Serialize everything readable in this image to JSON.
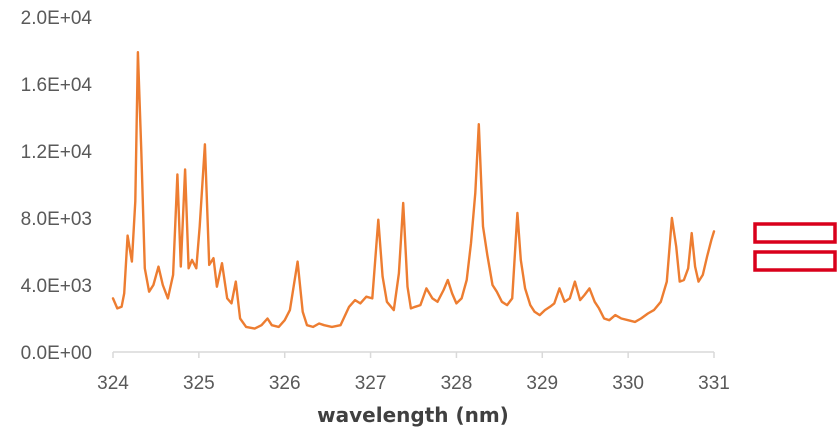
{
  "chart_data": {
    "type": "line",
    "title": "",
    "xlabel": "wavelength (nm)",
    "ylabel": "",
    "xlim": [
      324,
      331
    ],
    "ylim": [
      0,
      20000
    ],
    "x_ticks": [
      324,
      325,
      326,
      327,
      328,
      329,
      330,
      331
    ],
    "x_tick_labels": [
      "324",
      "325",
      "326",
      "327",
      "328",
      "329",
      "330",
      "331"
    ],
    "y_ticks": [
      0,
      4000,
      8000,
      12000,
      16000,
      20000
    ],
    "y_tick_labels": [
      "0.0E+00",
      "4.0E+03",
      "8.0E+03",
      "1.2E+04",
      "1.6E+04",
      "2.0E+04"
    ],
    "grid": false,
    "legend": "right (markers only, no text)",
    "series": [
      {
        "color": "#ED7D31",
        "points": [
          [
            324.0,
            3200
          ],
          [
            324.05,
            2600
          ],
          [
            324.1,
            2700
          ],
          [
            324.13,
            3500
          ],
          [
            324.17,
            6950
          ],
          [
            324.22,
            5400
          ],
          [
            324.26,
            9000
          ],
          [
            324.29,
            17900
          ],
          [
            324.33,
            12000
          ],
          [
            324.37,
            5000
          ],
          [
            324.42,
            3600
          ],
          [
            324.47,
            4000
          ],
          [
            324.53,
            5100
          ],
          [
            324.58,
            4000
          ],
          [
            324.64,
            3200
          ],
          [
            324.7,
            4600
          ],
          [
            324.75,
            10600
          ],
          [
            324.79,
            5100
          ],
          [
            324.84,
            10900
          ],
          [
            324.88,
            5000
          ],
          [
            324.92,
            5500
          ],
          [
            324.97,
            5000
          ],
          [
            325.01,
            7500
          ],
          [
            325.07,
            12400
          ],
          [
            325.12,
            5200
          ],
          [
            325.17,
            5600
          ],
          [
            325.21,
            3900
          ],
          [
            325.27,
            5300
          ],
          [
            325.33,
            3200
          ],
          [
            325.38,
            2900
          ],
          [
            325.43,
            4200
          ],
          [
            325.48,
            2000
          ],
          [
            325.55,
            1500
          ],
          [
            325.65,
            1400
          ],
          [
            325.73,
            1600
          ],
          [
            325.8,
            2000
          ],
          [
            325.85,
            1600
          ],
          [
            325.93,
            1500
          ],
          [
            326.0,
            1900
          ],
          [
            326.06,
            2500
          ],
          [
            326.15,
            5400
          ],
          [
            326.21,
            2400
          ],
          [
            326.26,
            1600
          ],
          [
            326.33,
            1500
          ],
          [
            326.4,
            1700
          ],
          [
            326.46,
            1600
          ],
          [
            326.55,
            1500
          ],
          [
            326.65,
            1600
          ],
          [
            326.75,
            2700
          ],
          [
            326.82,
            3100
          ],
          [
            326.88,
            2900
          ],
          [
            326.95,
            3300
          ],
          [
            327.02,
            3200
          ],
          [
            327.09,
            7900
          ],
          [
            327.14,
            4500
          ],
          [
            327.19,
            3000
          ],
          [
            327.27,
            2500
          ],
          [
            327.33,
            4700
          ],
          [
            327.38,
            8900
          ],
          [
            327.43,
            3900
          ],
          [
            327.47,
            2600
          ],
          [
            327.52,
            2700
          ],
          [
            327.58,
            2800
          ],
          [
            327.65,
            3800
          ],
          [
            327.72,
            3200
          ],
          [
            327.78,
            3000
          ],
          [
            327.85,
            3700
          ],
          [
            327.9,
            4300
          ],
          [
            327.95,
            3500
          ],
          [
            328.0,
            2900
          ],
          [
            328.06,
            3200
          ],
          [
            328.12,
            4300
          ],
          [
            328.17,
            6500
          ],
          [
            328.22,
            9500
          ],
          [
            328.26,
            13600
          ],
          [
            328.31,
            7500
          ],
          [
            328.36,
            5800
          ],
          [
            328.42,
            4000
          ],
          [
            328.47,
            3600
          ],
          [
            328.53,
            3000
          ],
          [
            328.59,
            2800
          ],
          [
            328.65,
            3200
          ],
          [
            328.71,
            8300
          ],
          [
            328.75,
            5500
          ],
          [
            328.8,
            3800
          ],
          [
            328.86,
            2800
          ],
          [
            328.91,
            2400
          ],
          [
            328.97,
            2200
          ],
          [
            329.03,
            2500
          ],
          [
            329.09,
            2700
          ],
          [
            329.14,
            2900
          ],
          [
            329.2,
            3800
          ],
          [
            329.26,
            3000
          ],
          [
            329.32,
            3200
          ],
          [
            329.38,
            4200
          ],
          [
            329.44,
            3100
          ],
          [
            329.49,
            3400
          ],
          [
            329.55,
            3800
          ],
          [
            329.61,
            3000
          ],
          [
            329.66,
            2600
          ],
          [
            329.72,
            2000
          ],
          [
            329.78,
            1900
          ],
          [
            329.85,
            2200
          ],
          [
            329.92,
            2000
          ],
          [
            330.0,
            1900
          ],
          [
            330.08,
            1800
          ],
          [
            330.15,
            2000
          ],
          [
            330.23,
            2300
          ],
          [
            330.3,
            2500
          ],
          [
            330.38,
            3000
          ],
          [
            330.45,
            4200
          ],
          [
            330.51,
            8000
          ],
          [
            330.56,
            6300
          ],
          [
            330.6,
            4200
          ],
          [
            330.65,
            4300
          ],
          [
            330.7,
            5000
          ],
          [
            330.74,
            7100
          ],
          [
            330.78,
            5100
          ],
          [
            330.82,
            4200
          ],
          [
            330.87,
            4600
          ],
          [
            330.92,
            5700
          ],
          [
            330.97,
            6700
          ],
          [
            331.0,
            7200
          ]
        ]
      }
    ]
  },
  "legend_markers": [
    {
      "color": "#D9001B"
    },
    {
      "color": "#D9001B"
    }
  ]
}
